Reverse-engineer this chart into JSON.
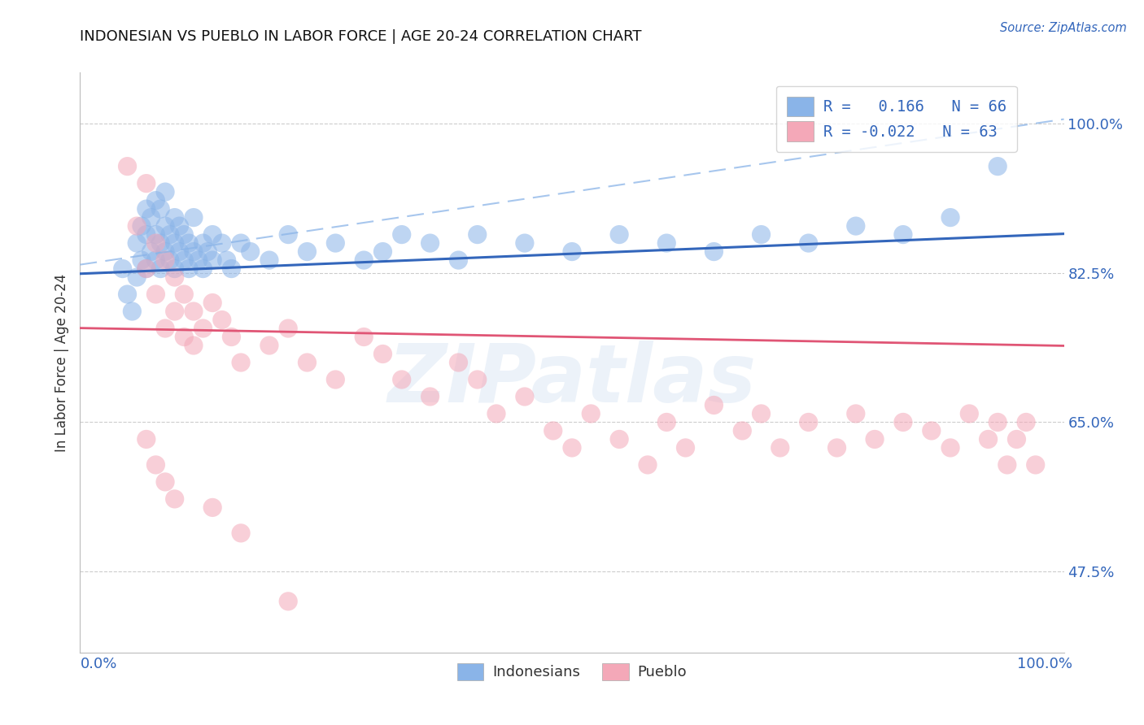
{
  "title": "INDONESIAN VS PUEBLO IN LABOR FORCE | AGE 20-24 CORRELATION CHART",
  "source_text": "Source: ZipAtlas.com",
  "ylabel": "In Labor Force | Age 20-24",
  "xlim": [
    -0.02,
    1.02
  ],
  "ylim": [
    0.38,
    1.06
  ],
  "xticks": [
    0.0,
    1.0
  ],
  "xticklabels": [
    "0.0%",
    "100.0%"
  ],
  "yticks": [
    0.475,
    0.65,
    0.825,
    1.0
  ],
  "yticklabels": [
    "47.5%",
    "65.0%",
    "82.5%",
    "100.0%"
  ],
  "blue_color": "#8ab4e8",
  "pink_color": "#f4a8b8",
  "blue_line_color": "#3366bb",
  "pink_line_color": "#e05575",
  "dashed_line_color": "#8ab4e8",
  "watermark_text": "ZIPatlas",
  "blue_r": 0.166,
  "blue_n": 66,
  "pink_r": -0.022,
  "pink_n": 63,
  "indonesian_x": [
    0.025,
    0.03,
    0.035,
    0.04,
    0.04,
    0.045,
    0.045,
    0.05,
    0.05,
    0.05,
    0.055,
    0.055,
    0.06,
    0.06,
    0.06,
    0.065,
    0.065,
    0.065,
    0.07,
    0.07,
    0.07,
    0.075,
    0.075,
    0.08,
    0.08,
    0.08,
    0.085,
    0.085,
    0.09,
    0.09,
    0.095,
    0.095,
    0.1,
    0.1,
    0.105,
    0.11,
    0.11,
    0.115,
    0.12,
    0.12,
    0.13,
    0.135,
    0.14,
    0.15,
    0.16,
    0.18,
    0.2,
    0.22,
    0.25,
    0.28,
    0.3,
    0.32,
    0.35,
    0.38,
    0.4,
    0.45,
    0.5,
    0.55,
    0.6,
    0.65,
    0.7,
    0.75,
    0.8,
    0.85,
    0.9,
    0.95
  ],
  "indonesian_y": [
    0.83,
    0.8,
    0.78,
    0.82,
    0.86,
    0.84,
    0.88,
    0.83,
    0.87,
    0.9,
    0.85,
    0.89,
    0.84,
    0.87,
    0.91,
    0.83,
    0.86,
    0.9,
    0.85,
    0.88,
    0.92,
    0.84,
    0.87,
    0.83,
    0.86,
    0.89,
    0.85,
    0.88,
    0.84,
    0.87,
    0.83,
    0.86,
    0.85,
    0.89,
    0.84,
    0.86,
    0.83,
    0.85,
    0.87,
    0.84,
    0.86,
    0.84,
    0.83,
    0.86,
    0.85,
    0.84,
    0.87,
    0.85,
    0.86,
    0.84,
    0.85,
    0.87,
    0.86,
    0.84,
    0.87,
    0.86,
    0.85,
    0.87,
    0.86,
    0.85,
    0.87,
    0.86,
    0.88,
    0.87,
    0.89,
    0.95
  ],
  "pueblo_x": [
    0.03,
    0.04,
    0.05,
    0.05,
    0.06,
    0.06,
    0.07,
    0.07,
    0.08,
    0.08,
    0.09,
    0.09,
    0.1,
    0.1,
    0.11,
    0.12,
    0.13,
    0.14,
    0.15,
    0.18,
    0.2,
    0.22,
    0.25,
    0.28,
    0.3,
    0.32,
    0.35,
    0.38,
    0.4,
    0.42,
    0.45,
    0.48,
    0.5,
    0.52,
    0.55,
    0.58,
    0.6,
    0.62,
    0.65,
    0.68,
    0.7,
    0.72,
    0.75,
    0.78,
    0.8,
    0.82,
    0.85,
    0.88,
    0.9,
    0.92,
    0.94,
    0.95,
    0.96,
    0.97,
    0.98,
    0.99,
    0.05,
    0.06,
    0.07,
    0.08,
    0.12,
    0.15,
    0.2
  ],
  "pueblo_y": [
    0.95,
    0.88,
    0.83,
    0.93,
    0.8,
    0.86,
    0.84,
    0.76,
    0.82,
    0.78,
    0.8,
    0.75,
    0.78,
    0.74,
    0.76,
    0.79,
    0.77,
    0.75,
    0.72,
    0.74,
    0.76,
    0.72,
    0.7,
    0.75,
    0.73,
    0.7,
    0.68,
    0.72,
    0.7,
    0.66,
    0.68,
    0.64,
    0.62,
    0.66,
    0.63,
    0.6,
    0.65,
    0.62,
    0.67,
    0.64,
    0.66,
    0.62,
    0.65,
    0.62,
    0.66,
    0.63,
    0.65,
    0.64,
    0.62,
    0.66,
    0.63,
    0.65,
    0.6,
    0.63,
    0.65,
    0.6,
    0.63,
    0.6,
    0.58,
    0.56,
    0.55,
    0.52,
    0.44
  ]
}
